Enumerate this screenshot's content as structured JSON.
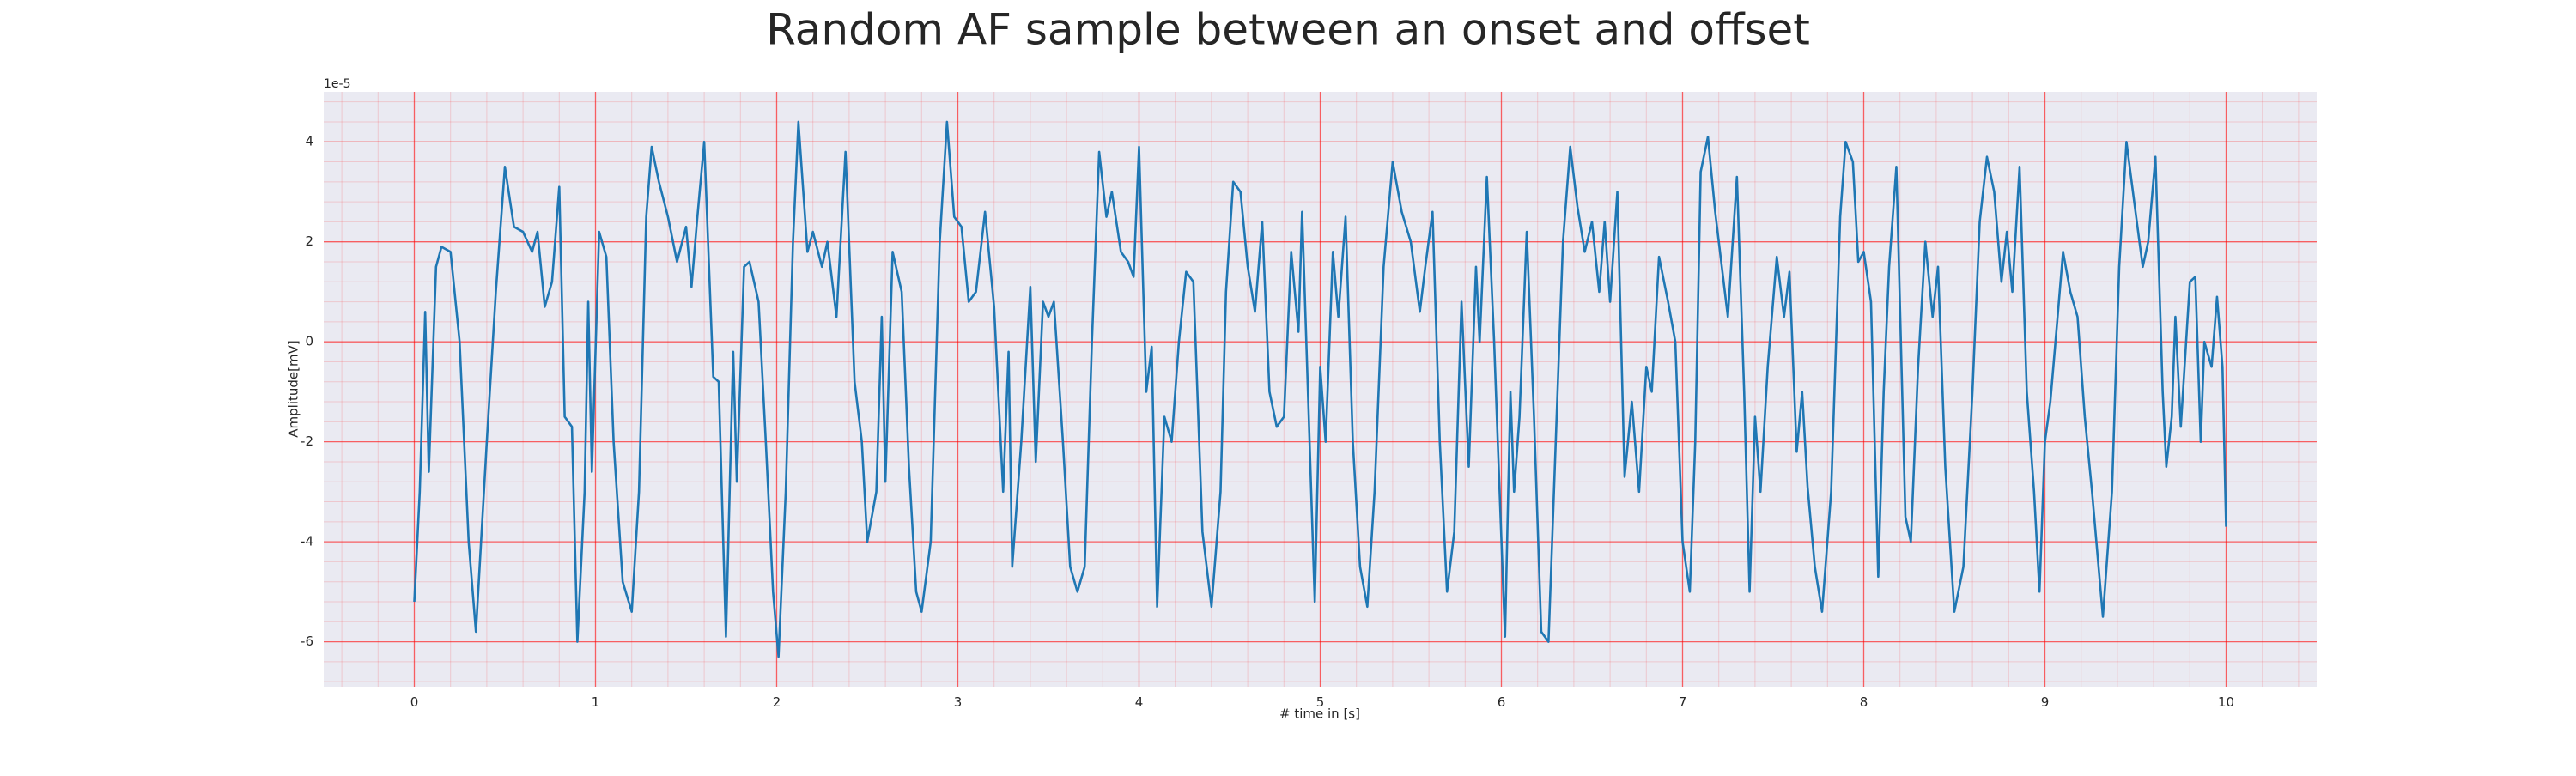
{
  "chart_data": {
    "type": "line",
    "title": "Random AF sample between an onset and offset",
    "x_label": "# time in [s]",
    "y_label": "Amplitude[mV]",
    "y_offset_label": "1e-5",
    "xlim": [
      -0.5,
      10.5
    ],
    "xticks": [
      0,
      1,
      2,
      3,
      4,
      5,
      6,
      7,
      8,
      9,
      10
    ],
    "ylim": [
      -6.9,
      5
    ],
    "yticks": [
      -6,
      -4,
      -2,
      0,
      2,
      4
    ],
    "grid": true,
    "minor_grid": true,
    "grid_color": "#ff0000",
    "background": "#eaeaf2",
    "x": [
      0,
      0.03,
      0.06,
      0.08,
      0.12,
      0.15,
      0.2,
      0.25,
      0.3,
      0.34,
      0.4,
      0.45,
      0.5,
      0.55,
      0.6,
      0.65,
      0.68,
      0.72,
      0.76,
      0.8,
      0.83,
      0.87,
      0.9,
      0.94,
      0.96,
      0.98,
      1.02,
      1.06,
      1.1,
      1.15,
      1.2,
      1.24,
      1.28,
      1.31,
      1.35,
      1.4,
      1.45,
      1.5,
      1.53,
      1.56,
      1.6,
      1.65,
      1.68,
      1.72,
      1.76,
      1.78,
      1.82,
      1.85,
      1.9,
      1.94,
      1.98,
      2.01,
      2.05,
      2.09,
      2.12,
      2.17,
      2.2,
      2.25,
      2.28,
      2.33,
      2.38,
      2.43,
      2.47,
      2.5,
      2.55,
      2.58,
      2.6,
      2.64,
      2.69,
      2.73,
      2.77,
      2.8,
      2.85,
      2.9,
      2.94,
      2.98,
      3.02,
      3.06,
      3.1,
      3.15,
      3.2,
      3.25,
      3.28,
      3.3,
      3.35,
      3.4,
      3.43,
      3.47,
      3.5,
      3.53,
      3.58,
      3.62,
      3.66,
      3.7,
      3.74,
      3.78,
      3.82,
      3.85,
      3.9,
      3.94,
      3.97,
      4,
      4.04,
      4.07,
      4.1,
      4.14,
      4.18,
      4.22,
      4.26,
      4.3,
      4.35,
      4.4,
      4.45,
      4.48,
      4.52,
      4.56,
      4.6,
      4.64,
      4.68,
      4.72,
      4.76,
      4.8,
      4.84,
      4.88,
      4.9,
      4.97,
      5,
      5.03,
      5.07,
      5.1,
      5.14,
      5.18,
      5.22,
      5.26,
      5.3,
      5.35,
      5.4,
      5.45,
      5.5,
      5.55,
      5.58,
      5.62,
      5.66,
      5.7,
      5.74,
      5.78,
      5.82,
      5.86,
      5.88,
      5.92,
      5.96,
      5.98,
      6.02,
      6.05,
      6.07,
      6.1,
      6.14,
      6.18,
      6.22,
      6.26,
      6.3,
      6.34,
      6.38,
      6.42,
      6.46,
      6.5,
      6.54,
      6.57,
      6.6,
      6.64,
      6.68,
      6.72,
      6.76,
      6.8,
      6.83,
      6.87,
      6.92,
      6.96,
      7,
      7.04,
      7.07,
      7.1,
      7.14,
      7.18,
      7.2,
      7.25,
      7.3,
      7.34,
      7.37,
      7.4,
      7.43,
      7.47,
      7.52,
      7.56,
      7.59,
      7.63,
      7.66,
      7.69,
      7.73,
      7.77,
      7.82,
      7.87,
      7.9,
      7.94,
      7.97,
      8,
      8.04,
      8.08,
      8.11,
      8.14,
      8.18,
      8.23,
      8.26,
      8.3,
      8.34,
      8.38,
      8.41,
      8.45,
      8.5,
      8.55,
      8.6,
      8.64,
      8.68,
      8.72,
      8.76,
      8.79,
      8.82,
      8.86,
      8.9,
      8.94,
      8.97,
      9,
      9.03,
      9.07,
      9.1,
      9.14,
      9.18,
      9.22,
      9.26,
      9.32,
      9.37,
      9.41,
      9.45,
      9.5,
      9.54,
      9.57,
      9.61,
      9.65,
      9.67,
      9.7,
      9.72,
      9.75,
      9.8,
      9.83,
      9.86,
      9.88,
      9.92,
      9.95,
      9.98,
      10
    ],
    "series": [
      {
        "color": "#1f77b4",
        "values": [
          -5.2,
          -3,
          0.6,
          -2.6,
          1.5,
          1.9,
          1.8,
          0,
          -4,
          -5.8,
          -2,
          1,
          3.5,
          2.3,
          2.2,
          1.8,
          2.2,
          0.7,
          1.2,
          3.1,
          -1.5,
          -1.7,
          -6,
          -3,
          0.8,
          -2.6,
          2.2,
          1.7,
          -2,
          -4.8,
          -5.4,
          -3,
          2.5,
          3.9,
          3.2,
          2.5,
          1.6,
          2.3,
          1.1,
          2.4,
          4,
          -0.7,
          -0.8,
          -5.9,
          -0.2,
          -2.8,
          1.5,
          1.6,
          0.8,
          -2,
          -5,
          -6.3,
          -3,
          2,
          4.4,
          1.8,
          2.2,
          1.5,
          2,
          0.5,
          3.8,
          -0.8,
          -2,
          -4,
          -3,
          0.5,
          -2.8,
          1.8,
          1,
          -2.5,
          -5,
          -5.4,
          -4,
          2,
          4.4,
          2.5,
          2.3,
          0.8,
          1,
          2.6,
          0.7,
          -3,
          -0.2,
          -4.5,
          -2,
          1.1,
          -2.4,
          0.8,
          0.5,
          0.8,
          -2,
          -4.5,
          -5,
          -4.5,
          0,
          3.8,
          2.5,
          3,
          1.8,
          1.6,
          1.3,
          3.9,
          -1,
          -0.1,
          -5.3,
          -1.5,
          -2,
          0,
          1.4,
          1.2,
          -3.8,
          -5.3,
          -3,
          1,
          3.2,
          3,
          1.5,
          0.6,
          2.4,
          -1,
          -1.7,
          -1.5,
          1.8,
          0.2,
          2.6,
          -5.2,
          -0.5,
          -2,
          1.8,
          0.5,
          2.5,
          -2,
          -4.5,
          -5.3,
          -3,
          1.5,
          3.6,
          2.6,
          2,
          0.6,
          1.5,
          2.6,
          -2,
          -5,
          -3.8,
          0.8,
          -2.5,
          1.5,
          0,
          3.3,
          0,
          -2,
          -5.9,
          -1,
          -3,
          -1.5,
          2.2,
          -1.5,
          -5.8,
          -6,
          -2,
          2,
          3.9,
          2.7,
          1.8,
          2.4,
          1,
          2.4,
          0.8,
          3,
          -2.7,
          -1.2,
          -3,
          -0.5,
          -1,
          1.7,
          0.8,
          0,
          -4,
          -5,
          -2,
          3.4,
          4.1,
          2.6,
          2,
          0.5,
          3.3,
          -1,
          -5,
          -1.5,
          -3,
          -0.5,
          1.7,
          0.5,
          1.4,
          -2.2,
          -1,
          -2.9,
          -4.5,
          -5.4,
          -3,
          2.5,
          4,
          3.6,
          1.6,
          1.8,
          0.8,
          -4.7,
          -1,
          1.5,
          3.5,
          -3.5,
          -4,
          -0.5,
          2,
          0.5,
          1.5,
          -2.5,
          -5.4,
          -4.5,
          -1,
          2.4,
          3.7,
          3,
          1.2,
          2.2,
          1,
          3.5,
          -1,
          -3,
          -5,
          -2,
          -1.2,
          0.5,
          1.8,
          1,
          0.5,
          -1.5,
          -3,
          -5.5,
          -3,
          1.5,
          4,
          2.6,
          1.5,
          2,
          3.7,
          -1,
          -2.5,
          -1.5,
          0.5,
          -1.7,
          1.2,
          1.3,
          -2,
          0,
          -0.5,
          0.9,
          -0.5,
          -3.7
        ]
      }
    ]
  }
}
